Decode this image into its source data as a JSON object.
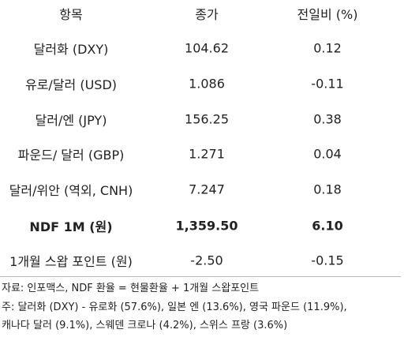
{
  "table": {
    "header": [
      "항목",
      "종가",
      "전일비 (%)"
    ],
    "rows": [
      [
        "달러화 (DXY)",
        "104.62",
        "0.12"
      ],
      [
        "유로/달러 (USD)",
        "1.086",
        "-0.11"
      ],
      [
        "달러/엔 (JPY)",
        "156.25",
        "0.38"
      ],
      [
        "파운드/ 달러 (GBP)",
        "1.271",
        "0.04"
      ],
      [
        "달러/위안 (역외, CNH)",
        "7.247",
        "0.18"
      ],
      [
        "NDF 1M (원)",
        "1,359.50",
        "6.10"
      ],
      [
        "1개월 스왑 포인트 (원)",
        "-2.50",
        "-0.15"
      ]
    ],
    "bold_row": 5
  },
  "notes": [
    "자료: 인포맥스, NDF 환율 = 현물환율 + 1개월 스왑포인트",
    "주: 달러화 (DXY) - 유로화 (57.6%), 일본 엔 (13.6%), 영국 파운드 (11.9%),",
    "캐나다 달러 (9.1%), 스웨덴 크로나 (4.2%), 스위스 프랑 (3.6%)"
  ]
}
